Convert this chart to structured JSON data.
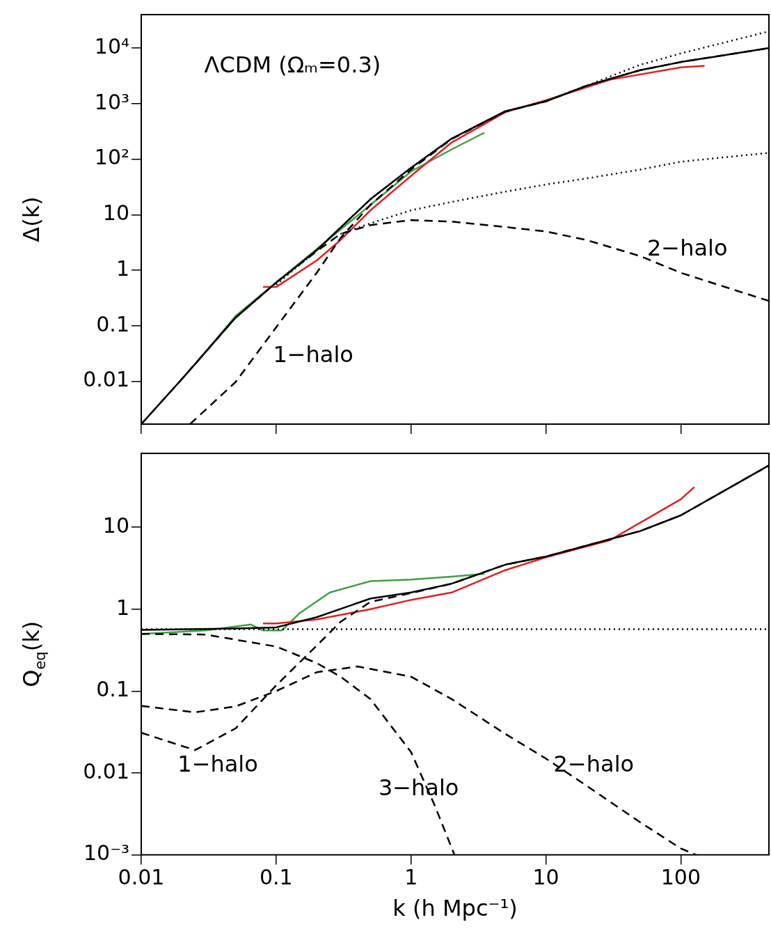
{
  "chart_data": [
    {
      "type": "line",
      "ylabel": "Δ(k)",
      "log": "xy",
      "xlim": [
        0.01,
        450
      ],
      "ylim": [
        0.0017,
        40000
      ],
      "xticks": [
        0.01,
        0.1,
        1,
        10,
        100
      ],
      "yticks": [
        {
          "value": 10000,
          "label": "10⁴"
        },
        {
          "value": 1000,
          "label": "10³"
        },
        {
          "value": 100,
          "label": "10²"
        },
        10,
        1,
        0.1,
        0.01
      ],
      "tick_labels": "y",
      "grid": false,
      "legend": false,
      "marker": "none",
      "annotations": [
        "ΛCDM (Ωₘ=0.3)",
        "1−halo",
        "2−halo"
      ],
      "series": [
        {
          "color": "#000000",
          "line_style": "solid",
          "x": [
            0.01,
            0.02,
            0.05,
            0.1,
            0.2,
            0.5,
            1,
            2,
            5,
            10,
            20,
            50,
            100,
            450
          ],
          "values": [
            0.0017,
            0.011,
            0.14,
            0.6,
            2.3,
            19,
            70,
            234,
            730,
            1100,
            2100,
            4000,
            5600,
            10000
          ]
        },
        {
          "color": "#000000",
          "line_style": "dotted",
          "x": [
            0.1,
            0.2,
            0.5,
            1,
            2,
            5,
            10,
            20,
            50,
            100,
            450
          ],
          "values": [
            0.55,
            2.3,
            19,
            70,
            234,
            730,
            1100,
            2100,
            5000,
            8000,
            20000
          ]
        },
        {
          "color": "#000000",
          "line_style": "dotted",
          "x": [
            0.3,
            0.5,
            1,
            2,
            5,
            10,
            20,
            50,
            100,
            450
          ],
          "values": [
            4.5,
            7,
            12,
            17,
            26,
            35,
            45,
            65,
            90,
            130
          ]
        },
        {
          "color": "#000000",
          "line_style": "dashed",
          "x": [
            0.01,
            0.02,
            0.05,
            0.1,
            0.2,
            0.3,
            0.5,
            1,
            2,
            5,
            10,
            20,
            50,
            100,
            450
          ],
          "values": [
            0.0017,
            0.011,
            0.14,
            0.6,
            2.2,
            4.5,
            6.5,
            8,
            7.5,
            6,
            5,
            3.5,
            1.8,
            0.9,
            0.28
          ]
        },
        {
          "color": "#000000",
          "line_style": "dashed",
          "x": [
            0.023,
            0.05,
            0.1,
            0.2,
            0.3,
            0.5,
            1,
            2,
            5,
            10,
            20,
            50,
            100,
            450
          ],
          "values": [
            0.0017,
            0.0097,
            0.094,
            0.9,
            3.8,
            15,
            65,
            230,
            720,
            1100,
            2100,
            4000,
            5600,
            10000
          ]
        },
        {
          "color": "#e02020",
          "line_style": "solid",
          "x": [
            0.08,
            0.1,
            0.2,
            0.3,
            0.5,
            1,
            2,
            5,
            10,
            30,
            100,
            150
          ],
          "values": [
            0.5,
            0.5,
            1.5,
            3.5,
            12,
            50,
            200,
            700,
            1150,
            2700,
            4500,
            4800
          ]
        },
        {
          "color": "#40a040",
          "line_style": "solid",
          "x": [
            0.025,
            0.05,
            0.1,
            0.2,
            0.5,
            1,
            2,
            3.5
          ],
          "values": [
            0.02,
            0.15,
            0.6,
            2.4,
            15,
            60,
            150,
            300
          ]
        }
      ]
    },
    {
      "type": "line",
      "ylabel": "Q$_{eq}$(k)",
      "xlabel": "k (h Mpc⁻¹)",
      "log": "xy",
      "xlim": [
        0.01,
        450
      ],
      "ylim": [
        0.001,
        80
      ],
      "xticks": [
        0.01,
        0.1,
        1,
        10,
        100
      ],
      "yticks": [
        10,
        1,
        0.1,
        0.01,
        {
          "value": 0.001,
          "label": "10⁻³"
        }
      ],
      "grid": false,
      "legend": false,
      "marker": "none",
      "annotations": [
        "1−halo",
        "3−halo",
        "2−halo"
      ],
      "series": [
        {
          "color": "#000000",
          "line_style": "solid",
          "x": [
            0.01,
            0.05,
            0.1,
            0.2,
            0.5,
            1,
            2,
            5,
            10,
            50,
            100,
            450
          ],
          "values": [
            0.56,
            0.58,
            0.6,
            0.8,
            1.35,
            1.6,
            2.05,
            3.5,
            4.4,
            9,
            14,
            57
          ]
        },
        {
          "color": "#000000",
          "line_style": "dotted",
          "x": [
            0.01,
            450
          ],
          "values": [
            0.57,
            0.57
          ]
        },
        {
          "color": "#000000",
          "line_style": "dashed",
          "x": [
            0.01,
            0.03,
            0.1,
            0.2,
            0.3,
            0.5,
            1,
            1.5,
            2.1
          ],
          "values": [
            0.5,
            0.49,
            0.35,
            0.22,
            0.15,
            0.08,
            0.018,
            0.004,
            0.001
          ]
        },
        {
          "color": "#000000",
          "line_style": "dashed",
          "x": [
            0.01,
            0.025,
            0.05,
            0.1,
            0.2,
            0.4,
            1,
            2,
            5,
            10,
            20,
            50,
            100,
            130
          ],
          "values": [
            0.066,
            0.055,
            0.065,
            0.1,
            0.17,
            0.2,
            0.15,
            0.08,
            0.03,
            0.015,
            0.007,
            0.0025,
            0.0012,
            0.001
          ]
        },
        {
          "color": "#000000",
          "line_style": "dashed",
          "x": [
            0.01,
            0.025,
            0.05,
            0.1,
            0.2,
            0.3,
            0.5,
            1,
            2,
            5,
            10,
            50,
            100,
            450
          ],
          "values": [
            0.031,
            0.019,
            0.035,
            0.117,
            0.36,
            0.7,
            1.23,
            1.57,
            2.05,
            3.5,
            4.4,
            9,
            14,
            57
          ]
        },
        {
          "color": "#e02020",
          "line_style": "solid",
          "x": [
            0.08,
            0.1,
            0.2,
            0.5,
            1,
            2,
            5,
            10,
            30,
            100,
            126
          ],
          "values": [
            0.67,
            0.67,
            0.75,
            1.0,
            1.3,
            1.6,
            3.0,
            4.3,
            7,
            22,
            31
          ]
        },
        {
          "color": "#40a040",
          "line_style": "solid",
          "x": [
            0.01,
            0.03,
            0.065,
            0.08,
            0.11,
            0.15,
            0.25,
            0.5,
            1,
            2,
            3.5
          ],
          "values": [
            0.5,
            0.55,
            0.65,
            0.55,
            0.55,
            0.9,
            1.6,
            2.2,
            2.3,
            2.5,
            2.7
          ]
        }
      ]
    }
  ]
}
